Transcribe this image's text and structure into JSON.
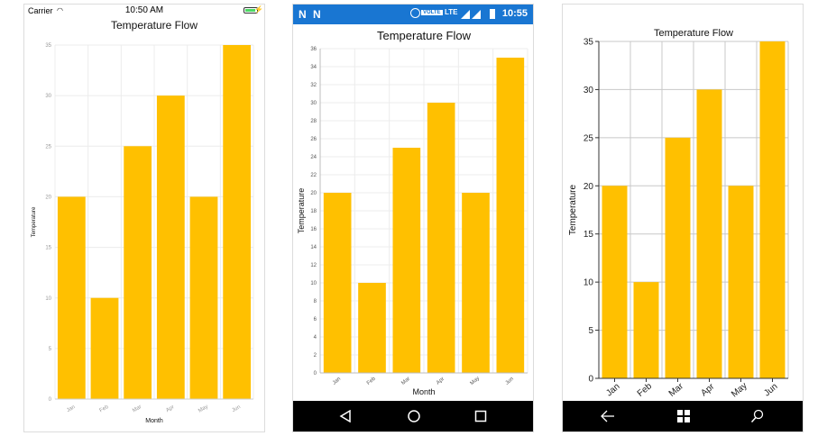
{
  "ios": {
    "status": {
      "carrier": "Carrier",
      "time": "10:50 AM"
    }
  },
  "android": {
    "status": {
      "volte": "VOLTE",
      "network": "LTE",
      "time": "10:55"
    },
    "nav": {
      "back": "back-icon",
      "home": "home-icon",
      "recents": "recents-icon"
    }
  },
  "uwp": {
    "nav": {
      "back": "back-arrow-icon",
      "start": "windows-icon",
      "search": "search-icon"
    }
  },
  "colors": {
    "bar": "#ffc000",
    "android_status": "#1976d2",
    "nav_bar": "#000000"
  },
  "chart_data": [
    {
      "type": "bar",
      "platform": "iOS",
      "title": "Temperature Flow",
      "xlabel": "Month",
      "ylabel": "Temperature",
      "categories": [
        "Jan",
        "Feb",
        "Mar",
        "Apr",
        "May",
        "Jun"
      ],
      "values": [
        20,
        10,
        25,
        30,
        20,
        35
      ],
      "ylim": [
        0,
        35
      ],
      "yticks": [
        0,
        5,
        10,
        15,
        20,
        25,
        30,
        35
      ],
      "grid": true
    },
    {
      "type": "bar",
      "platform": "Android",
      "title": "Temperature Flow",
      "xlabel": "Month",
      "ylabel": "Temperature",
      "categories": [
        "Jan",
        "Feb",
        "Mar",
        "Apr",
        "May",
        "Jun"
      ],
      "values": [
        20,
        10,
        25,
        30,
        20,
        35
      ],
      "ylim": [
        0,
        36
      ],
      "yticks": [
        0,
        2,
        4,
        6,
        8,
        10,
        12,
        14,
        16,
        18,
        20,
        22,
        24,
        26,
        28,
        30,
        32,
        34,
        36
      ],
      "grid": true
    },
    {
      "type": "bar",
      "platform": "Windows",
      "title": "Temperature Flow",
      "xlabel": "",
      "ylabel": "Temperature",
      "categories": [
        "Jan",
        "Feb",
        "Mar",
        "Apr",
        "May",
        "Jun"
      ],
      "values": [
        20,
        10,
        25,
        30,
        20,
        35
      ],
      "ylim": [
        0,
        35
      ],
      "yticks": [
        0,
        5,
        10,
        15,
        20,
        25,
        30,
        35
      ],
      "grid": true
    }
  ]
}
